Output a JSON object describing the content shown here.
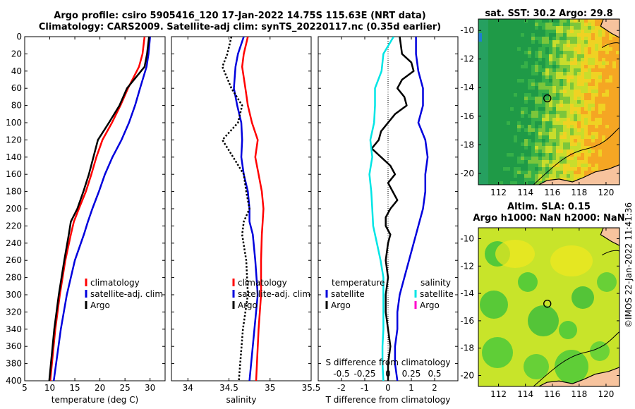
{
  "header": {
    "title_line1": "Argo profile: csiro 5905416_120 17-Jan-2022 14.75S 115.63E (NRT data)",
    "title_line2": "Climatology: CARS2009. Satellite-adj clim: synTS_20220117.nc (0.35d earlier)"
  },
  "footer": {
    "credit": "©IMOS 22-Jan-2022 11:41:36"
  },
  "colors": {
    "climatology": "#ff0000",
    "satellite": "#0000dd",
    "argo": "#000000",
    "cyan": "#00e5e5",
    "magenta": "#ff00cc",
    "map_warm": "#f5b021",
    "map_green": "#22a83c",
    "map_yellow": "#e6e62a",
    "land": "#f7c39d"
  },
  "chart_data": [
    {
      "type": "line",
      "name": "temperature-profile",
      "xlabel": "temperature (deg C)",
      "ylabel": "",
      "xlim": [
        5,
        33
      ],
      "ylim": [
        400,
        0
      ],
      "xticks": [
        5,
        10,
        15,
        20,
        25,
        30
      ],
      "yticks": [
        0,
        20,
        40,
        60,
        80,
        100,
        120,
        140,
        160,
        180,
        200,
        220,
        240,
        260,
        280,
        300,
        320,
        340,
        360,
        380,
        400
      ],
      "depth": [
        0,
        20,
        35,
        60,
        80,
        100,
        120,
        140,
        160,
        180,
        200,
        215,
        230,
        260,
        300,
        340,
        400
      ],
      "legend": [
        "climatology",
        "satellite-adj. clim",
        "Argo"
      ],
      "series": [
        {
          "name": "climatology",
          "color": "#ff0000",
          "values": [
            28.9,
            28.5,
            27.8,
            25.6,
            24.1,
            22.4,
            20.5,
            19.3,
            18.3,
            17.2,
            15.8,
            14.8,
            14.2,
            13.1,
            12.0,
            11.1,
            10.1
          ]
        },
        {
          "name": "satellite-adj. clim",
          "color": "#0000dd",
          "values": [
            30.0,
            29.7,
            29.3,
            28.0,
            27.0,
            25.8,
            24.3,
            22.5,
            21.0,
            19.8,
            18.5,
            17.6,
            16.8,
            15.0,
            13.4,
            12.2,
            10.8
          ]
        },
        {
          "name": "Argo",
          "color": "#000000",
          "values": [
            29.8,
            29.4,
            28.9,
            25.4,
            23.9,
            21.8,
            19.6,
            18.7,
            17.8,
            16.7,
            15.5,
            14.2,
            13.8,
            12.9,
            11.8,
            10.9,
            9.9
          ]
        }
      ]
    },
    {
      "type": "line",
      "name": "salinity-profile",
      "xlabel": "salinity",
      "ylabel": "",
      "xlim": [
        33.8,
        35.5
      ],
      "ylim": [
        400,
        0
      ],
      "xticks": [
        34,
        34.5,
        35,
        35.5
      ],
      "depth": [
        0,
        20,
        35,
        60,
        80,
        100,
        120,
        140,
        160,
        180,
        200,
        215,
        230,
        260,
        300,
        340,
        400
      ],
      "legend": [
        "climatology",
        "satellite-adj. clim",
        "Argo"
      ],
      "series": [
        {
          "name": "climatology",
          "color": "#ff0000",
          "values": [
            34.73,
            34.68,
            34.66,
            34.7,
            34.73,
            34.78,
            34.85,
            34.82,
            34.86,
            34.9,
            34.92,
            34.91,
            34.9,
            34.89,
            34.89,
            34.86,
            34.83
          ]
        },
        {
          "name": "satellite-adj. clim",
          "color": "#0000dd",
          "values": [
            34.68,
            34.61,
            34.58,
            34.56,
            34.6,
            34.65,
            34.66,
            34.65,
            34.68,
            34.73,
            34.75,
            34.75,
            34.79,
            34.82,
            34.85,
            34.81,
            34.75
          ]
        },
        {
          "name": "Argo",
          "color": "#000000",
          "dashed": true,
          "values": [
            34.53,
            34.48,
            34.42,
            34.53,
            34.66,
            34.61,
            34.42,
            34.55,
            34.68,
            34.71,
            34.75,
            34.68,
            34.66,
            34.71,
            34.73,
            34.67,
            34.62
          ]
        }
      ]
    },
    {
      "type": "line",
      "name": "difference-profile",
      "xlabel": "T difference from climatology",
      "xlabel_top": "S difference from climatology",
      "xlim": [
        -3,
        3
      ],
      "ylim": [
        400,
        0
      ],
      "xticks": [
        -2,
        -1,
        0,
        1,
        2
      ],
      "xticks_top": [
        -0.5,
        -0.25,
        0,
        0.25,
        0.5
      ],
      "xticks_top_labels": [
        "-0.5",
        "-0.25",
        "0",
        "0.25",
        "0.5"
      ],
      "legend_temperature": [
        "temperature",
        "satellite",
        "Argo"
      ],
      "legend_salinity": [
        "salinity",
        "satellite",
        "Argo"
      ],
      "series": [
        {
          "name": "temperature satellite",
          "color": "#0000dd",
          "depth": [
            0,
            20,
            40,
            60,
            80,
            100,
            120,
            140,
            160,
            180,
            200,
            220,
            240,
            260,
            280,
            300,
            320,
            340,
            360,
            380,
            400
          ],
          "values": [
            1.2,
            1.2,
            1.3,
            1.5,
            1.5,
            1.3,
            1.6,
            1.7,
            1.6,
            1.6,
            1.5,
            1.3,
            1.1,
            0.9,
            0.7,
            0.5,
            0.4,
            0.4,
            0.3,
            0.3,
            0.4
          ]
        },
        {
          "name": "temperature Argo",
          "color": "#000000",
          "depth": [
            0,
            20,
            30,
            40,
            50,
            60,
            70,
            80,
            90,
            100,
            110,
            120,
            130,
            140,
            150,
            160,
            170,
            180,
            190,
            200,
            210,
            220,
            230,
            240,
            260,
            280,
            300,
            320,
            340,
            360,
            380,
            400
          ],
          "values": [
            0.5,
            0.6,
            1.0,
            1.1,
            0.6,
            0.4,
            0.7,
            0.8,
            0.3,
            0.0,
            -0.3,
            -0.4,
            -0.7,
            -0.3,
            0.1,
            0.3,
            0.0,
            0.2,
            0.4,
            0.1,
            -0.1,
            -0.1,
            0.1,
            0.0,
            -0.1,
            0.0,
            -0.1,
            -0.1,
            0.0,
            0.1,
            0.0,
            0.0
          ]
        },
        {
          "name": "salinity satellite",
          "color": "#00e5e5",
          "depth": [
            0,
            20,
            40,
            60,
            80,
            100,
            120,
            140,
            160,
            180,
            200,
            220,
            240,
            260,
            280,
            300,
            320,
            340,
            360,
            380,
            400
          ],
          "values": [
            0.06,
            -0.05,
            -0.07,
            -0.14,
            -0.14,
            -0.15,
            -0.19,
            -0.17,
            -0.2,
            -0.18,
            -0.17,
            -0.16,
            -0.12,
            -0.08,
            -0.05,
            -0.05,
            -0.05,
            -0.05,
            -0.06,
            -0.06,
            -0.05
          ]
        }
      ]
    },
    {
      "type": "heatmap",
      "name": "sst-map",
      "title": "sat. SST: 30.2 Argo: 29.8",
      "xlim": [
        110.5,
        121
      ],
      "ylim": [
        -20.8,
        -9.2
      ],
      "xticks": [
        112,
        114,
        116,
        118,
        120
      ],
      "yticks": [
        -10,
        -12,
        -14,
        -16,
        -18,
        -20
      ],
      "marker": {
        "lon": 115.63,
        "lat": -14.75
      }
    },
    {
      "type": "heatmap",
      "name": "sla-map",
      "title_line1": "Altim. SLA: 0.15",
      "title_line2": "Argo h1000: NaN h2000: NaN",
      "xlim": [
        110.5,
        121
      ],
      "ylim": [
        -20.8,
        -9.2
      ],
      "xticks": [
        112,
        114,
        116,
        118,
        120
      ],
      "yticks": [
        -10,
        -12,
        -14,
        -16,
        -18,
        -20
      ],
      "marker": {
        "lon": 115.63,
        "lat": -14.75
      }
    }
  ]
}
